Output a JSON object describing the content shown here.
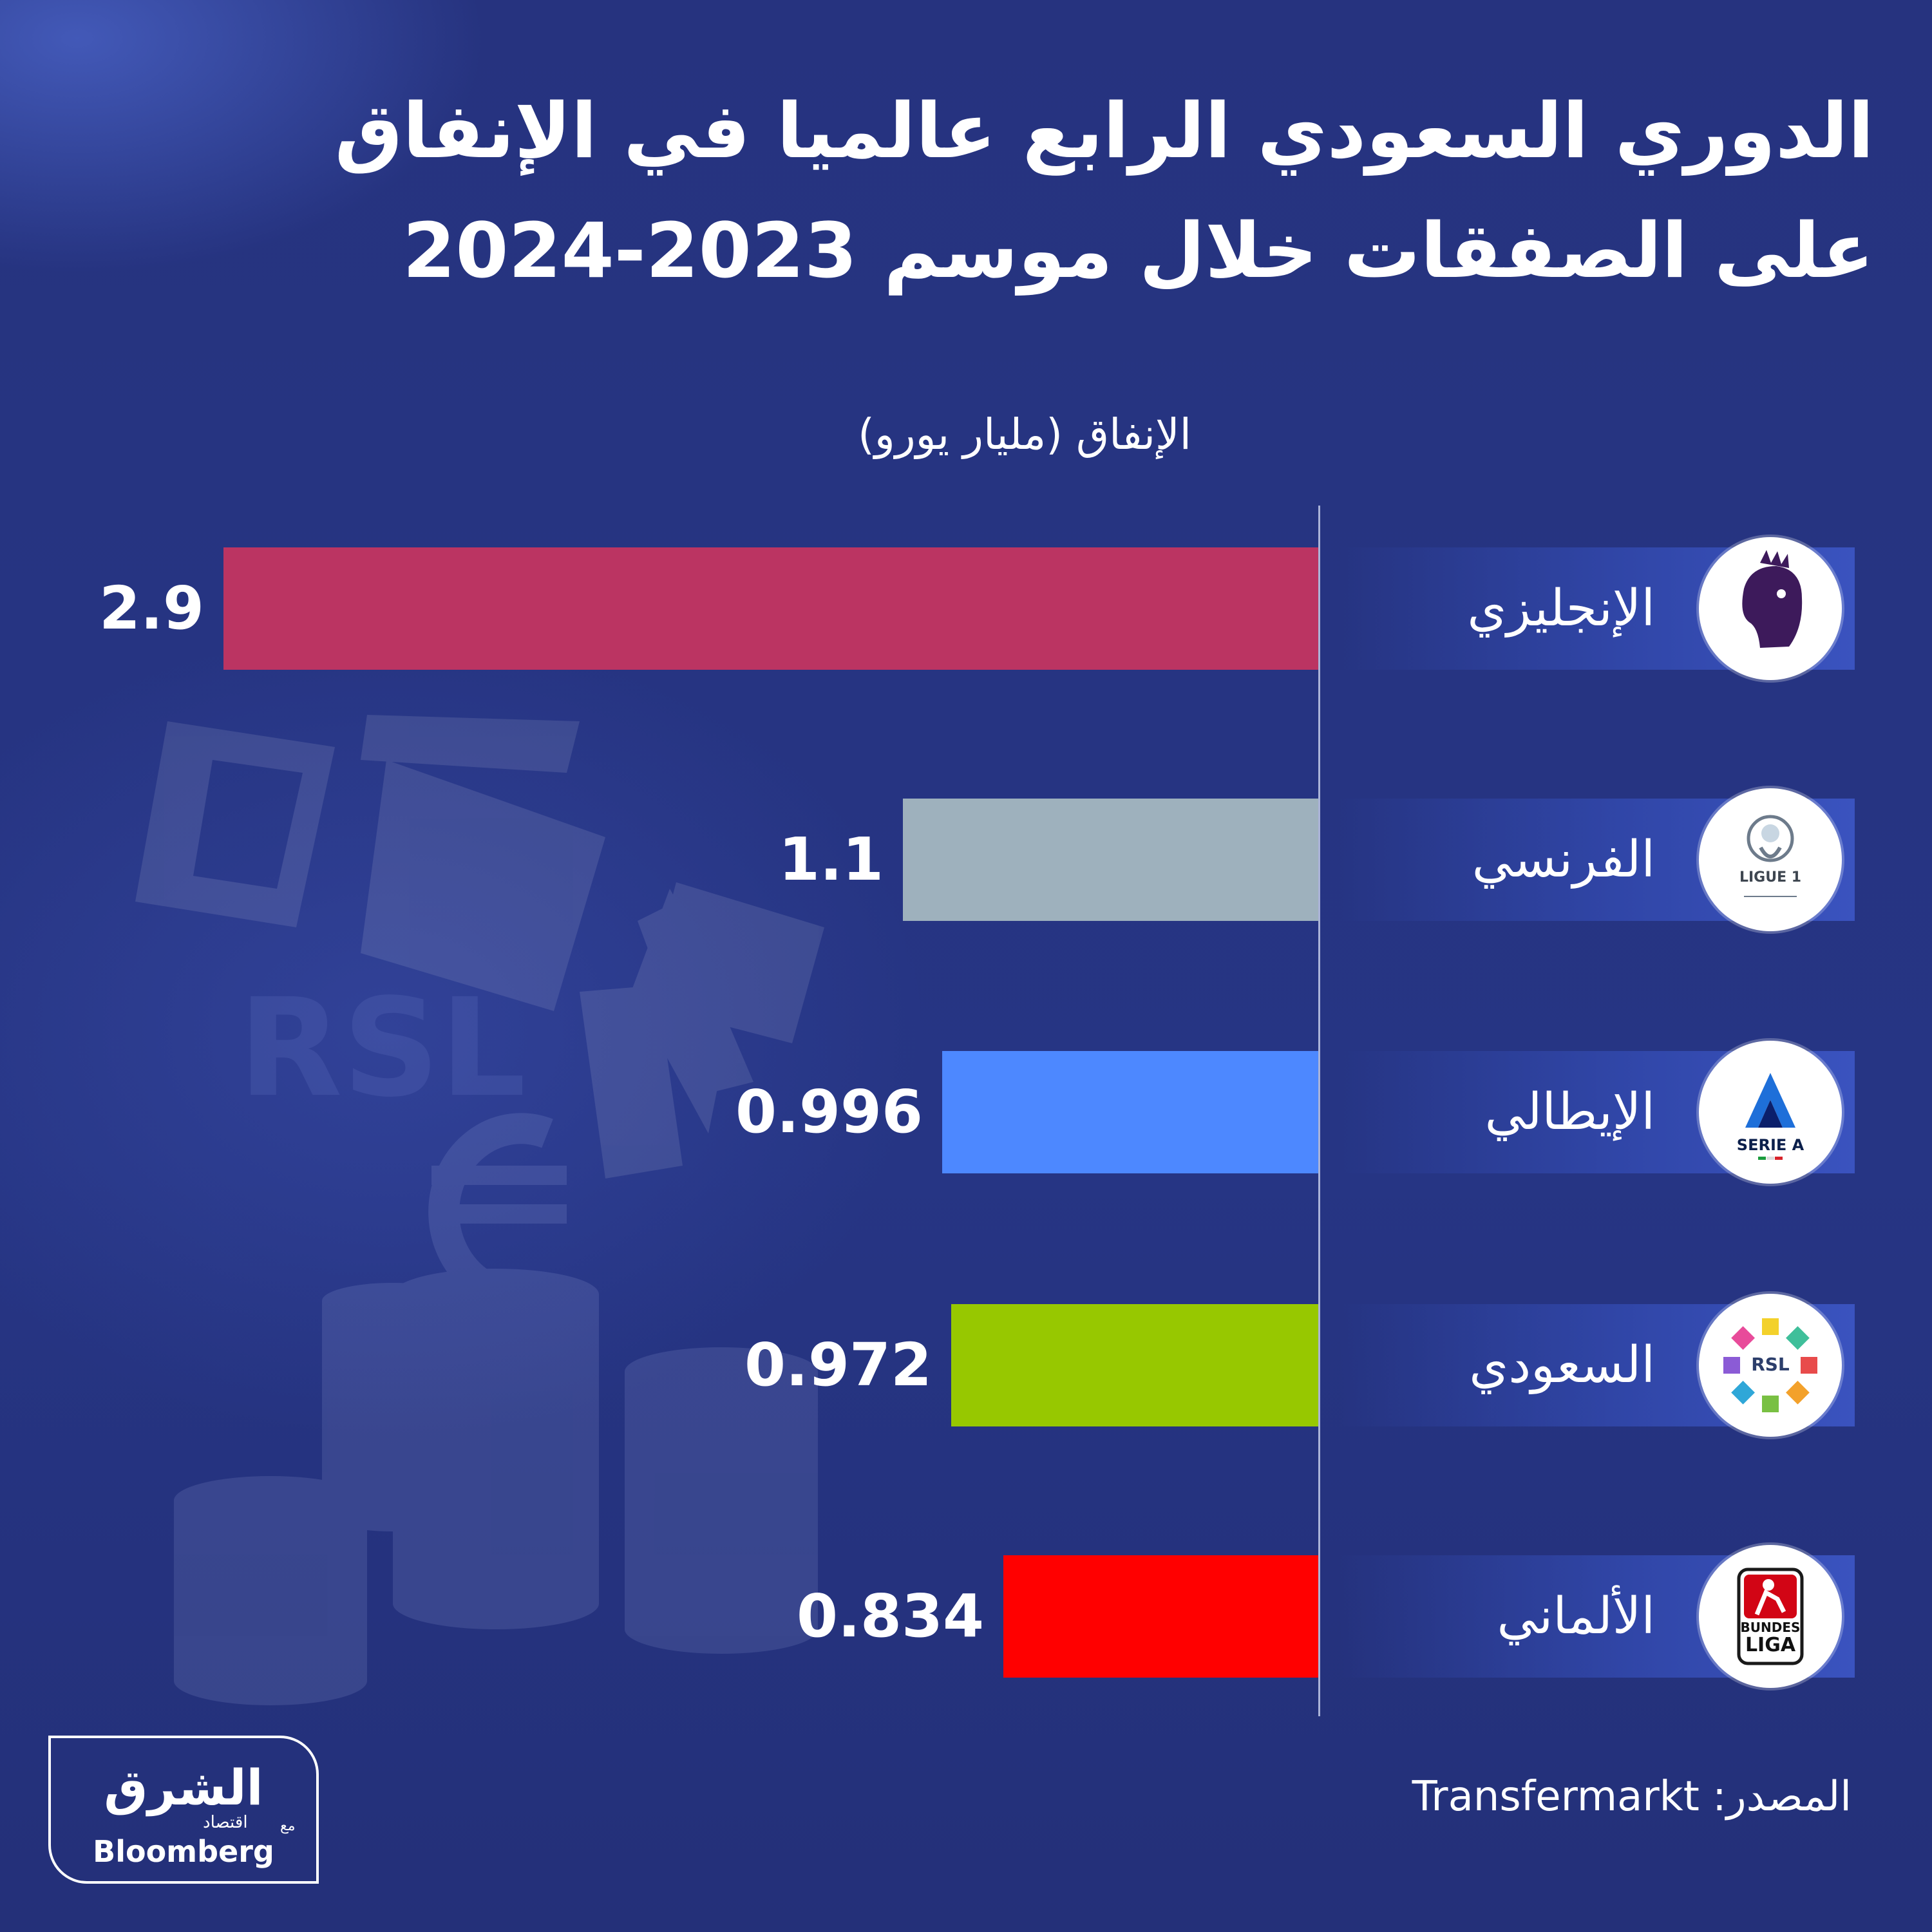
{
  "title_lines": [
    "الدوري السعودي الرابع عالميا في الإنفاق",
    "على الصفقات خلال موسم 2023-2024"
  ],
  "source": "المصدر: Transfermarkt",
  "brand": {
    "arabic_name": "الشرق",
    "arabic_sub": "اقتصاد",
    "with": "مع",
    "partner": "Bloomberg"
  },
  "colors": {
    "background": "#26337f",
    "text": "#ffffff",
    "axis": "#aab3d8"
  },
  "logos": [
    {
      "name": "premier-league-logo",
      "icon": "lion-icon"
    },
    {
      "name": "ligue-1-logo",
      "icon": "ligue1-icon",
      "text": "LIGUE 1"
    },
    {
      "name": "serie-a-logo",
      "icon": "serie-a-icon",
      "text": "SERIE A"
    },
    {
      "name": "rsl-logo",
      "icon": "rsl-icon",
      "text": "RSL"
    },
    {
      "name": "bundesliga-logo",
      "icon": "bundesliga-icon",
      "text1": "BUNDES",
      "text2": "LIGA"
    }
  ],
  "chart_data": {
    "type": "bar",
    "orientation": "horizontal",
    "title": "الدوري السعودي الرابع عالميا في الإنفاق على الصفقات خلال موسم 2023-2024",
    "xlabel": "الإنفاق (مليار يورو)",
    "categories": [
      "الإنجليزي",
      "الفرنسي",
      "الإيطالي",
      "السعودي",
      "الألماني"
    ],
    "values": [
      2.9,
      1.1,
      0.996,
      0.972,
      0.834
    ],
    "value_labels": [
      "2.9",
      "1.1",
      "0.996",
      "0.972",
      "0.834"
    ],
    "bar_colors": [
      "#bb3462",
      "#9eb1bd",
      "#4d88ff",
      "#97c800",
      "#ff0000"
    ],
    "xlim": [
      0,
      2.9
    ],
    "grid": false,
    "legend": "none"
  }
}
